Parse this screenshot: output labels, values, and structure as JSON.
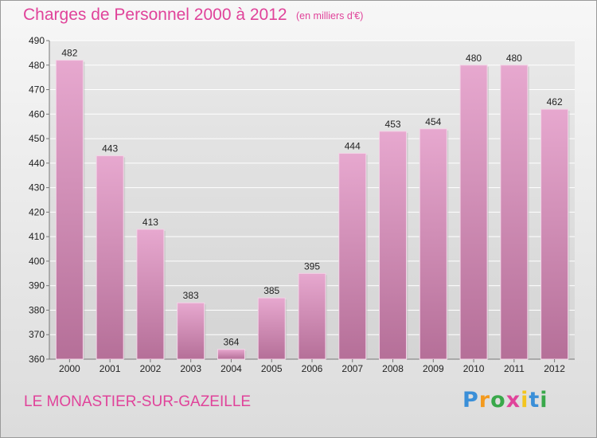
{
  "header": {
    "title": "Charges de Personnel 2000 à 2012",
    "subtitle": "(en milliers d'€)"
  },
  "footer": {
    "city": "LE MONASTIER-SUR-GAZEILLE",
    "logo_letters": [
      {
        "char": "P",
        "color": "#3a8fd8"
      },
      {
        "char": "r",
        "color": "#f39a1e"
      },
      {
        "char": "o",
        "color": "#39a84a"
      },
      {
        "char": "x",
        "color": "#e0439a"
      },
      {
        "char": "i",
        "color": "#f3c51e"
      },
      {
        "char": "t",
        "color": "#3a8fd8"
      },
      {
        "char": "i",
        "color": "#39a84a"
      }
    ]
  },
  "chart_data": {
    "type": "bar",
    "categories": [
      "2000",
      "2001",
      "2002",
      "2003",
      "2004",
      "2005",
      "2006",
      "2007",
      "2008",
      "2009",
      "2010",
      "2011",
      "2012"
    ],
    "values": [
      482,
      443,
      413,
      383,
      364,
      385,
      395,
      444,
      453,
      454,
      480,
      480,
      462
    ],
    "ylim": [
      360,
      490
    ],
    "yticks": [
      360,
      370,
      380,
      390,
      400,
      410,
      420,
      430,
      440,
      450,
      460,
      470,
      480,
      490
    ],
    "grid": true,
    "bar_color_top": "#e7a8cf",
    "bar_color_bottom": "#b56f98"
  }
}
